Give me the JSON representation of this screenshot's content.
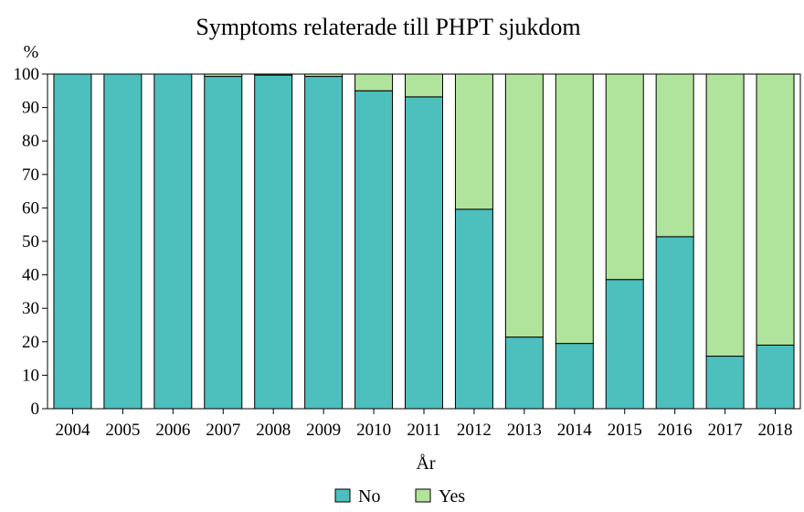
{
  "chart_data": {
    "type": "bar",
    "stacked": true,
    "title": "Symptoms relaterade till PHPT sjukdom",
    "xlabel": "År",
    "ylabel": "%",
    "ylim": [
      0,
      100
    ],
    "yticks": [
      0,
      10,
      20,
      30,
      40,
      50,
      60,
      70,
      80,
      90,
      100
    ],
    "categories": [
      "2004",
      "2005",
      "2006",
      "2007",
      "2008",
      "2009",
      "2010",
      "2011",
      "2012",
      "2013",
      "2014",
      "2015",
      "2016",
      "2017",
      "2018"
    ],
    "series": [
      {
        "name": "No",
        "color": "#4dbfbc",
        "values": [
          100,
          100,
          100,
          99.3,
          99.7,
          99.3,
          95,
          93.2,
          59.6,
          21.4,
          19.5,
          38.6,
          51.4,
          15.7,
          19.0
        ]
      },
      {
        "name": "Yes",
        "color": "#b0e39b",
        "values": [
          0,
          0,
          0,
          0.7,
          0.3,
          0.7,
          5,
          6.8,
          40.4,
          78.6,
          80.5,
          61.4,
          48.6,
          84.3,
          81.0
        ]
      }
    ],
    "grid": false,
    "legend_position": "bottom-center"
  }
}
